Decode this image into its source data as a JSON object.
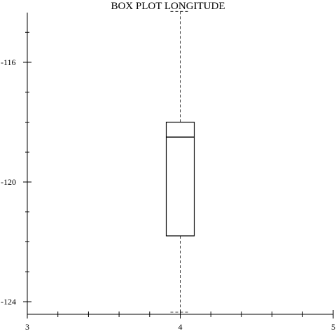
{
  "chart_data": {
    "type": "box",
    "title": "BOX PLOT LONGITUDE",
    "xlabel": "",
    "ylabel": "",
    "xlim": [
      3,
      5
    ],
    "ylim": [
      -124.3,
      -114.3
    ],
    "x_ticks": [
      3,
      4,
      5
    ],
    "x_minor_step": 0.2,
    "y_ticks": [
      -116,
      -120,
      -124
    ],
    "y_minor_step": 1,
    "grid": false,
    "boxes": [
      {
        "x": 4,
        "whisker_high": -114.3,
        "q3": -118.0,
        "median": -118.5,
        "q1": -121.8,
        "whisker_low": -124.35
      }
    ]
  }
}
